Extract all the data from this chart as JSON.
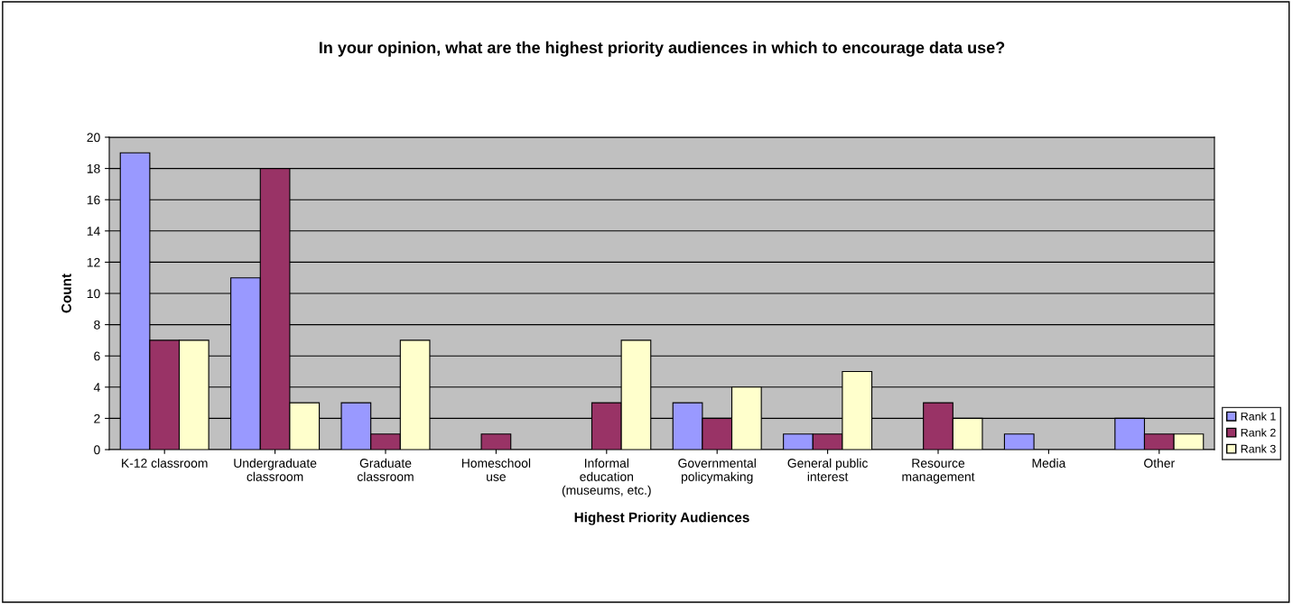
{
  "chart_data": {
    "type": "bar",
    "title": "In your opinion, what are the highest priority audiences in which to encourage data use?",
    "xlabel": "Highest Priority Audiences",
    "ylabel": "Count",
    "categories": [
      "K-12 classroom",
      "Undergraduate\nclassroom",
      "Graduate\nclassroom",
      "Homeschool\nuse",
      "Informal\neducation\n(museums, etc.)",
      "Governmental\npolicymaking",
      "General public\ninterest",
      "Resource\nmanagement",
      "Media",
      "Other"
    ],
    "series": [
      {
        "name": "Rank 1",
        "color": "#9999ff",
        "values": [
          19,
          11,
          3,
          null,
          null,
          3,
          1,
          null,
          1,
          2
        ]
      },
      {
        "name": "Rank 2",
        "color": "#993366",
        "values": [
          7,
          18,
          1,
          1,
          3,
          2,
          1,
          3,
          null,
          1
        ]
      },
      {
        "name": "Rank 3",
        "color": "#ffffcc",
        "values": [
          7,
          3,
          7,
          null,
          7,
          4,
          5,
          2,
          null,
          1
        ]
      }
    ],
    "ylim": [
      0,
      20
    ],
    "yticks": [
      0,
      2,
      4,
      6,
      8,
      10,
      12,
      14,
      16,
      18,
      20
    ],
    "grid": "y",
    "legend": "bottom right"
  }
}
